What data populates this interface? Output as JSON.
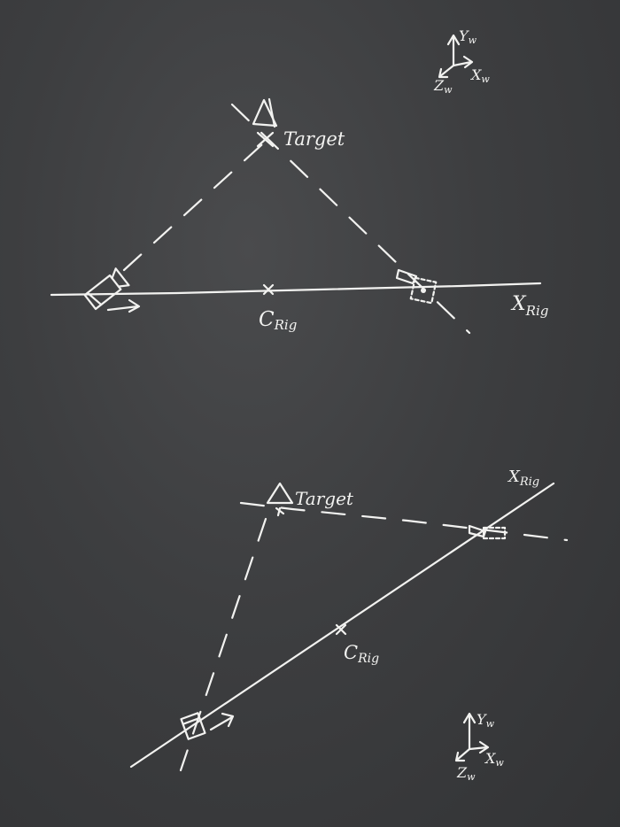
{
  "top_diagram": {
    "target_label": "Target",
    "rig_center_label": "C",
    "rig_center_sub": "Rig",
    "rig_axis_label": "X",
    "rig_axis_sub": "Rig"
  },
  "bottom_diagram": {
    "target_label": "Target",
    "rig_center_label": "C",
    "rig_center_sub": "Rig",
    "rig_axis_label": "X",
    "rig_axis_sub": "Rig"
  },
  "world_axes_top": {
    "y_label": "Y",
    "y_sub": "w",
    "x_label": "X",
    "x_sub": "w",
    "z_label": "Z",
    "z_sub": "w"
  },
  "world_axes_bottom": {
    "y_label": "Y",
    "y_sub": "w",
    "x_label": "X",
    "x_sub": "w",
    "z_label": "Z",
    "z_sub": "w"
  }
}
